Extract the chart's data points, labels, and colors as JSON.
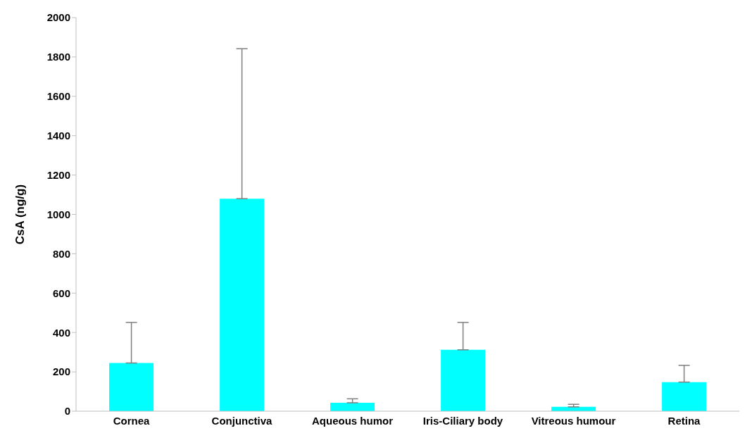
{
  "chart_data": {
    "type": "bar",
    "ylabel": "CsA (ng/g)",
    "categories": [
      "Cornea",
      "Conjunctiva",
      "Aqueous humor",
      "Iris-Ciliary body",
      "Vitreous humour",
      "Retina"
    ],
    "values": [
      245,
      1080,
      43,
      312,
      22,
      148
    ],
    "errors": [
      [
        245,
        451
      ],
      [
        1080,
        1842
      ],
      [
        43,
        63
      ],
      [
        312,
        451
      ],
      [
        22,
        35
      ],
      [
        148,
        233
      ]
    ],
    "color": "#00ffff",
    "ylim": [
      0,
      2000
    ],
    "yticks": [
      0,
      200,
      400,
      600,
      800,
      1000,
      1200,
      1400,
      1600,
      1800,
      2000
    ],
    "grid": false,
    "legend": false
  }
}
